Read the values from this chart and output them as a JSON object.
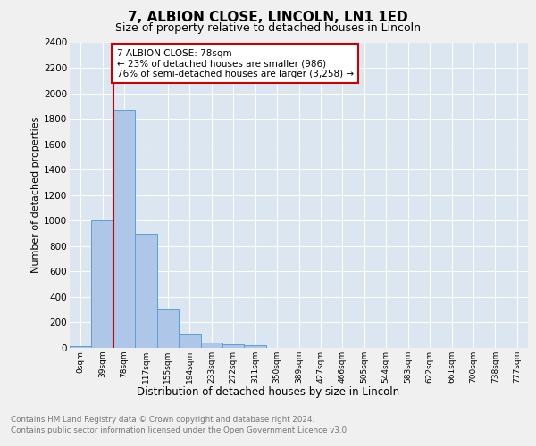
{
  "title1": "7, ALBION CLOSE, LINCOLN, LN1 1ED",
  "title2": "Size of property relative to detached houses in Lincoln",
  "xlabel": "Distribution of detached houses by size in Lincoln",
  "ylabel": "Number of detached properties",
  "categories": [
    "0sqm",
    "39sqm",
    "78sqm",
    "117sqm",
    "155sqm",
    "194sqm",
    "233sqm",
    "272sqm",
    "311sqm",
    "350sqm",
    "389sqm",
    "427sqm",
    "466sqm",
    "505sqm",
    "544sqm",
    "583sqm",
    "622sqm",
    "661sqm",
    "700sqm",
    "738sqm",
    "777sqm"
  ],
  "values": [
    15,
    1005,
    1870,
    900,
    310,
    110,
    45,
    30,
    20,
    0,
    0,
    0,
    0,
    0,
    0,
    0,
    0,
    0,
    0,
    0,
    0
  ],
  "bar_color": "#aec6e8",
  "bar_edge_color": "#5a9fd4",
  "annotation_title": "7 ALBION CLOSE: 78sqm",
  "annotation_line1": "← 23% of detached houses are smaller (986)",
  "annotation_line2": "76% of semi-detached houses are larger (3,258) →",
  "annotation_box_color": "#ffffff",
  "annotation_border_color": "#cc0000",
  "red_line_index": 2,
  "ylim": [
    0,
    2400
  ],
  "yticks": [
    0,
    200,
    400,
    600,
    800,
    1000,
    1200,
    1400,
    1600,
    1800,
    2000,
    2200,
    2400
  ],
  "background_color": "#dce6f1",
  "fig_background": "#f0f0f0",
  "footer1": "Contains HM Land Registry data © Crown copyright and database right 2024.",
  "footer2": "Contains public sector information licensed under the Open Government Licence v3.0."
}
